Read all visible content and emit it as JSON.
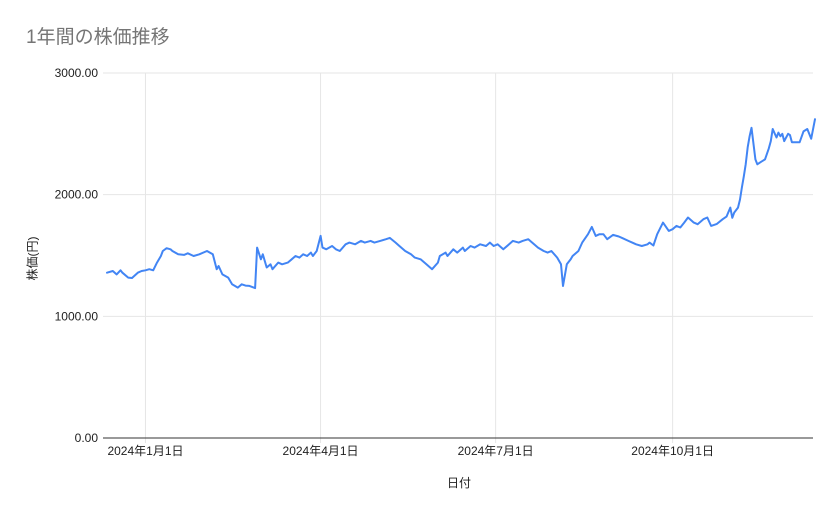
{
  "chart_data": {
    "type": "line",
    "title": "1年間の株価推移",
    "xlabel": "日付",
    "ylabel": "株価(円)",
    "legend": "none",
    "grid": true,
    "line_color": "#4285f4",
    "title_color": "#757575",
    "gridline_color": "#e6e6e6",
    "axis_line_color": "#333333",
    "tick_label_color": "#212121",
    "ylim": [
      0,
      3000
    ],
    "y_ticks": [
      {
        "value": 0,
        "label": "0.00"
      },
      {
        "value": 1000,
        "label": "1000.00"
      },
      {
        "value": 2000,
        "label": "2000.00"
      },
      {
        "value": 3000,
        "label": "3000.00"
      }
    ],
    "x_range_days": [
      0,
      368
    ],
    "x_ticks": [
      {
        "day": 20,
        "label": "2024年1月1日"
      },
      {
        "day": 111,
        "label": "2024年4月1日"
      },
      {
        "day": 202,
        "label": "2024年7月1日"
      },
      {
        "day": 294,
        "label": "2024年10月1日"
      }
    ],
    "series": [
      {
        "name": "株価",
        "points": [
          [
            0,
            1359
          ],
          [
            3,
            1373
          ],
          [
            5,
            1345
          ],
          [
            7,
            1378
          ],
          [
            8,
            1359
          ],
          [
            11,
            1318
          ],
          [
            13,
            1315
          ],
          [
            16,
            1359
          ],
          [
            18,
            1373
          ],
          [
            20,
            1378
          ],
          [
            22,
            1387
          ],
          [
            24,
            1378
          ],
          [
            26,
            1442
          ],
          [
            28,
            1496
          ],
          [
            29,
            1537
          ],
          [
            31,
            1560
          ],
          [
            33,
            1551
          ],
          [
            34,
            1537
          ],
          [
            37,
            1510
          ],
          [
            40,
            1505
          ],
          [
            42,
            1518
          ],
          [
            45,
            1496
          ],
          [
            48,
            1510
          ],
          [
            52,
            1537
          ],
          [
            55,
            1510
          ],
          [
            57,
            1387
          ],
          [
            58,
            1414
          ],
          [
            60,
            1345
          ],
          [
            63,
            1318
          ],
          [
            65,
            1263
          ],
          [
            68,
            1236
          ],
          [
            70,
            1263
          ],
          [
            72,
            1253
          ],
          [
            74,
            1250
          ],
          [
            77,
            1232
          ],
          [
            78,
            1565
          ],
          [
            80,
            1469
          ],
          [
            81,
            1510
          ],
          [
            83,
            1401
          ],
          [
            85,
            1428
          ],
          [
            86,
            1387
          ],
          [
            89,
            1442
          ],
          [
            91,
            1428
          ],
          [
            94,
            1442
          ],
          [
            96,
            1469
          ],
          [
            98,
            1496
          ],
          [
            100,
            1483
          ],
          [
            102,
            1510
          ],
          [
            104,
            1496
          ],
          [
            106,
            1524
          ],
          [
            107,
            1496
          ],
          [
            109,
            1537
          ],
          [
            111,
            1661
          ],
          [
            112,
            1565
          ],
          [
            114,
            1551
          ],
          [
            117,
            1578
          ],
          [
            119,
            1551
          ],
          [
            121,
            1537
          ],
          [
            124,
            1592
          ],
          [
            126,
            1606
          ],
          [
            129,
            1592
          ],
          [
            132,
            1620
          ],
          [
            134,
            1606
          ],
          [
            137,
            1620
          ],
          [
            139,
            1606
          ],
          [
            142,
            1620
          ],
          [
            145,
            1634
          ],
          [
            147,
            1645
          ],
          [
            150,
            1606
          ],
          [
            152,
            1578
          ],
          [
            155,
            1537
          ],
          [
            158,
            1510
          ],
          [
            160,
            1483
          ],
          [
            163,
            1469
          ],
          [
            166,
            1428
          ],
          [
            169,
            1387
          ],
          [
            172,
            1442
          ],
          [
            173,
            1496
          ],
          [
            176,
            1524
          ],
          [
            177,
            1496
          ],
          [
            180,
            1551
          ],
          [
            182,
            1524
          ],
          [
            185,
            1565
          ],
          [
            186,
            1537
          ],
          [
            189,
            1578
          ],
          [
            191,
            1565
          ],
          [
            194,
            1592
          ],
          [
            197,
            1578
          ],
          [
            199,
            1606
          ],
          [
            201,
            1578
          ],
          [
            203,
            1592
          ],
          [
            206,
            1551
          ],
          [
            209,
            1592
          ],
          [
            211,
            1620
          ],
          [
            214,
            1606
          ],
          [
            216,
            1620
          ],
          [
            219,
            1634
          ],
          [
            222,
            1592
          ],
          [
            224,
            1565
          ],
          [
            227,
            1537
          ],
          [
            229,
            1524
          ],
          [
            231,
            1537
          ],
          [
            234,
            1483
          ],
          [
            236,
            1428
          ],
          [
            237,
            1249
          ],
          [
            239,
            1428
          ],
          [
            241,
            1469
          ],
          [
            242,
            1496
          ],
          [
            245,
            1537
          ],
          [
            247,
            1606
          ],
          [
            250,
            1675
          ],
          [
            252,
            1735
          ],
          [
            254,
            1661
          ],
          [
            256,
            1675
          ],
          [
            258,
            1675
          ],
          [
            260,
            1634
          ],
          [
            263,
            1669
          ],
          [
            266,
            1656
          ],
          [
            268,
            1642
          ],
          [
            271,
            1620
          ],
          [
            273,
            1606
          ],
          [
            275,
            1592
          ],
          [
            278,
            1578
          ],
          [
            281,
            1592
          ],
          [
            282,
            1606
          ],
          [
            284,
            1582
          ],
          [
            286,
            1675
          ],
          [
            289,
            1770
          ],
          [
            292,
            1702
          ],
          [
            294,
            1716
          ],
          [
            296,
            1743
          ],
          [
            298,
            1730
          ],
          [
            300,
            1770
          ],
          [
            302,
            1812
          ],
          [
            305,
            1770
          ],
          [
            307,
            1757
          ],
          [
            310,
            1798
          ],
          [
            312,
            1812
          ],
          [
            314,
            1743
          ],
          [
            317,
            1760
          ],
          [
            320,
            1798
          ],
          [
            322,
            1820
          ],
          [
            324,
            1894
          ],
          [
            325,
            1810
          ],
          [
            326,
            1853
          ],
          [
            328,
            1894
          ],
          [
            329,
            1960
          ],
          [
            330,
            2060
          ],
          [
            331,
            2150
          ],
          [
            332,
            2250
          ],
          [
            333,
            2390
          ],
          [
            334,
            2480
          ],
          [
            335,
            2550
          ],
          [
            337,
            2290
          ],
          [
            338,
            2250
          ],
          [
            340,
            2270
          ],
          [
            342,
            2290
          ],
          [
            344,
            2380
          ],
          [
            345,
            2440
          ],
          [
            346,
            2540
          ],
          [
            348,
            2470
          ],
          [
            349,
            2510
          ],
          [
            350,
            2480
          ],
          [
            351,
            2500
          ],
          [
            352,
            2440
          ],
          [
            354,
            2500
          ],
          [
            355,
            2490
          ],
          [
            356,
            2430
          ],
          [
            358,
            2430
          ],
          [
            360,
            2430
          ],
          [
            362,
            2520
          ],
          [
            364,
            2540
          ],
          [
            365,
            2500
          ],
          [
            366,
            2460
          ],
          [
            368,
            2620
          ]
        ]
      }
    ]
  }
}
